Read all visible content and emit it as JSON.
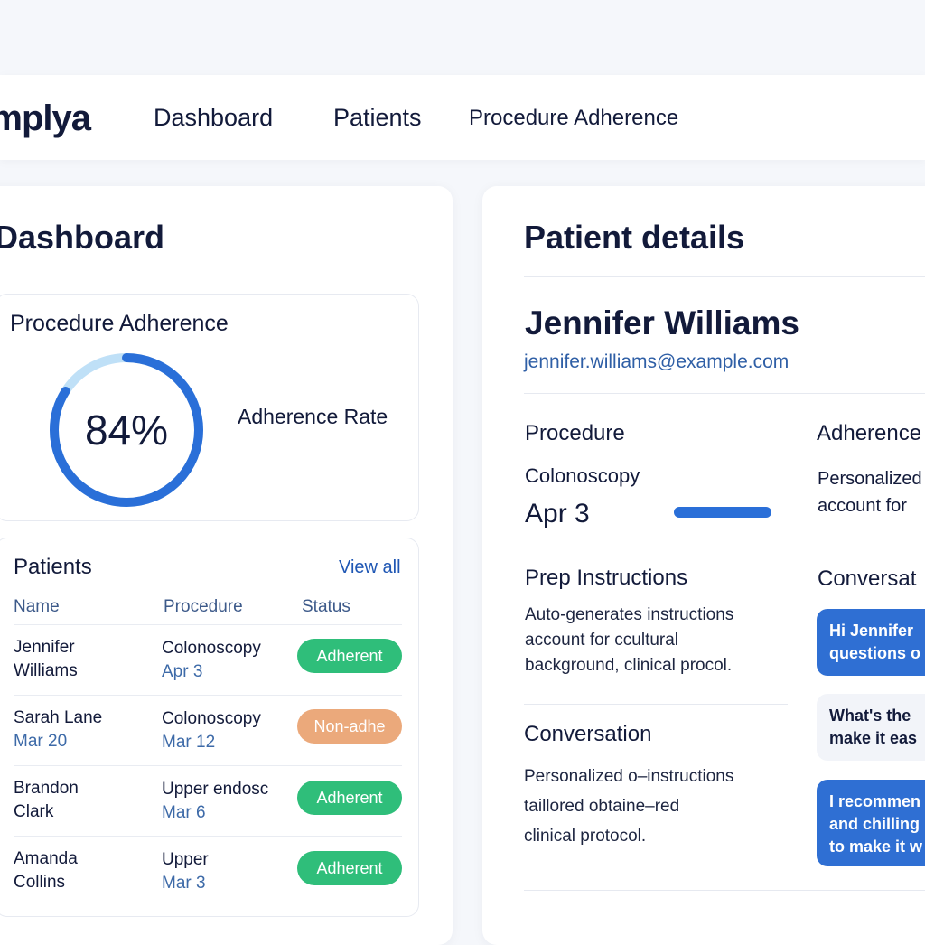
{
  "nav": {
    "brand": "omplya",
    "links": [
      "Dashboard",
      "Patients",
      "Procedure Adherence"
    ]
  },
  "dashboard": {
    "title": "Dashboard",
    "adherence": {
      "title": "Procedure Adherence",
      "value_text": "84%",
      "value": 84,
      "caption": "Adherence Rate",
      "ring_color": "#2a6fd8",
      "ring_track_color": "#bfe0f7"
    },
    "patients": {
      "title": "Patients",
      "view_all": "View all",
      "columns": [
        "Name",
        "Procedure",
        "Status"
      ],
      "rows": [
        {
          "name1": "Jennifer",
          "name2": "Williams",
          "procedure": "Colonoscopy",
          "date": "Apr 3",
          "status": "Adherent",
          "status_type": "green"
        },
        {
          "name1": "Sarah Lane",
          "name2": "Mar 20",
          "procedure": "Colonoscopy",
          "date": "Mar 12",
          "status": "Non-adhe",
          "status_type": "orange"
        },
        {
          "name1": "Brandon",
          "name2": "Clark",
          "procedure": "Upper endosc",
          "date": "Mar 6",
          "status": "Adherent",
          "status_type": "green"
        },
        {
          "name1": "Amanda",
          "name2": "Collins",
          "procedure": "Upper",
          "date": "Mar 3",
          "status": "Adherent",
          "status_type": "green"
        }
      ]
    }
  },
  "details": {
    "title": "Patient details",
    "name": "Jennifer Williams",
    "email": "jennifer.williams@example.com",
    "procedure_label": "Procedure",
    "procedure": "Colonoscopy",
    "date": "Apr 3",
    "adherence_label": "Adherence",
    "adherence_progress": 1.0,
    "adherence_text": [
      "Personalized",
      "account for"
    ],
    "prep_title": "Prep Instructions",
    "prep_text": [
      "Auto-generates instructions",
      "account for ccultural",
      "background, clinical procol."
    ],
    "conversation_title": "Conversation",
    "conversation_text": [
      "Personalized o–instructions",
      "taillored obtaine–red",
      "clinical protocol."
    ],
    "conversation_side_title": "Conversat",
    "chat": [
      {
        "type": "blue",
        "lines": [
          "Hi Jennifer",
          "questions o"
        ]
      },
      {
        "type": "light",
        "lines": [
          "What's the",
          "make it eas"
        ]
      },
      {
        "type": "blue",
        "lines": [
          "I recommen",
          "and chilling",
          "to make it w"
        ]
      }
    ]
  }
}
